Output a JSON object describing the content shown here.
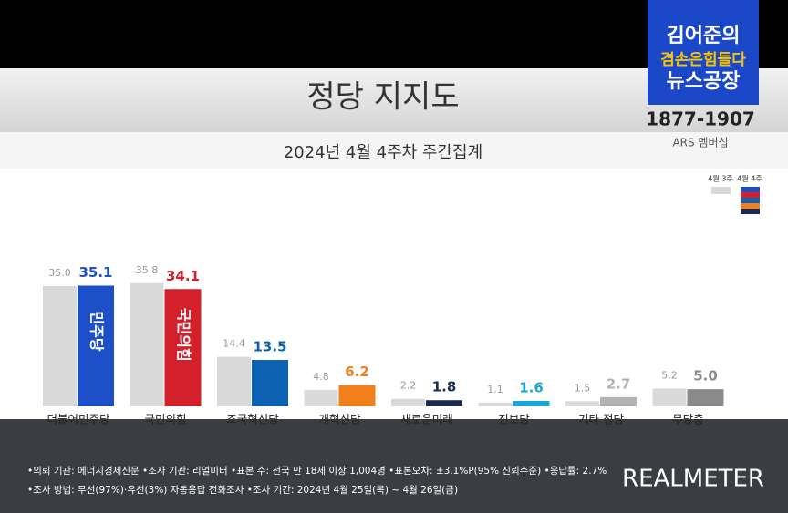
{
  "chart_data": {
    "type": "bar",
    "title": "정당 지지도",
    "subtitle": "2024년 4월 4주차 주간집계",
    "categories": [
      "더불어민주당",
      "국민의힘",
      "조국혁신당",
      "개혁신당",
      "새로운미래",
      "진보당",
      "기타 정당",
      "무당층"
    ],
    "series": [
      {
        "name": "4월 3주",
        "color": "#d9d9d9",
        "values": [
          35,
          35.8,
          14.4,
          4.8,
          2.2,
          1.1,
          1.5,
          5.2
        ],
        "value_labels": [
          "35.0",
          "35.8",
          "14.4",
          "4.8",
          "2.2",
          "1.1",
          "1.5",
          "5.2"
        ]
      },
      {
        "name": "4월 4주",
        "colors": [
          "#1c4fc8",
          "#d4202b",
          "#0d63b1",
          "#f07f1c",
          "#1b2b50",
          "#17a7d8",
          "#b3b3b3",
          "#8a8a8a"
        ],
        "values": [
          35.1,
          34.1,
          13.5,
          6.2,
          1.8,
          1.6,
          2.7,
          5
        ],
        "value_labels": [
          "35.1",
          "34.1",
          "13.5",
          "6.2",
          "1.8",
          "1.6",
          "2.7",
          "5.0"
        ]
      }
    ],
    "bar_logos": [
      "민주당",
      "국민의힘",
      null,
      null,
      null,
      null,
      null,
      null
    ],
    "ylim": [
      0,
      40
    ]
  },
  "broadcast": {
    "show_name": [
      "김어준의",
      "겸손은힘들다",
      "뉴스공장"
    ],
    "phone": "1877-1907",
    "ars": "ARS 멤버십"
  },
  "footer": {
    "lines": [
      "•의뢰 기관: 에너지경제신문 •조사 기관: 리얼미터 •표본 수: 전국 만 18세 이상 1,004명 •표본오차: ±3.1%P(95% 신뢰수준) •응답률: 2.7%",
      "•조사 방법: 무선(97%)·유선(3%) 자동응답 전화조사 •조사 기간: 2024년 4월 25일(목) ~ 4월 26일(금)"
    ],
    "logo": "REALMETER"
  }
}
